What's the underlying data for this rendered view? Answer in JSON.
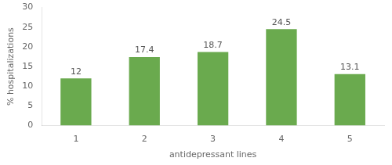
{
  "chart_data": {
    "type": "bar",
    "categories": [
      "1",
      "2",
      "3",
      "4",
      "5"
    ],
    "values": [
      12,
      17.4,
      18.7,
      24.5,
      13.1
    ],
    "color": "#6aaa4e",
    "xlabel": "antidepressant lines",
    "ylabel": "% hospitalizations",
    "ylim": [
      0,
      30
    ],
    "yticks": [
      0,
      5,
      10,
      15,
      20,
      25,
      30
    ],
    "grid": false,
    "data_labels": true
  }
}
